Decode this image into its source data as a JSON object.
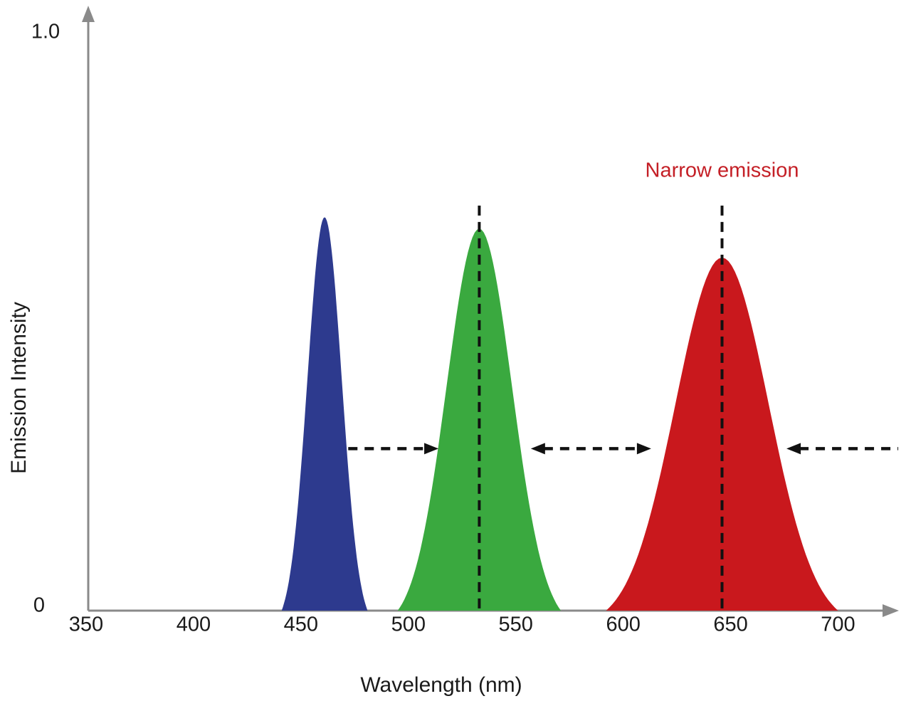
{
  "figure": {
    "background": "#ffffff",
    "axis_color": "#8a8a8a",
    "dash_color": "#111111",
    "text_color": "#1a1a1a"
  },
  "chart_data": {
    "type": "area",
    "title": "",
    "xlabel": "Wavelength (nm)",
    "ylabel": "Emission Intensity",
    "xlim": [
      350,
      727
    ],
    "ylim": [
      0,
      1.0
    ],
    "grid": false,
    "legend": "none",
    "x_ticks": [
      350,
      400,
      450,
      500,
      550,
      600,
      650,
      700
    ],
    "y_ticks": [
      {
        "value": 1.0,
        "label": "1.0"
      },
      {
        "value": 0,
        "label": "0"
      }
    ],
    "annotation": {
      "text": "Narrow emission",
      "color": "#c41f26",
      "x_nm": 646,
      "y_intensity": 0.76
    },
    "series": [
      {
        "name": "blue",
        "color": "#2d3a8e",
        "peak_nm": 461,
        "peak_intensity": 0.68,
        "base_halfwidth_nm": 20,
        "dashed_center_line": false
      },
      {
        "name": "green",
        "color": "#3aa93f",
        "peak_nm": 533,
        "peak_intensity": 0.66,
        "base_halfwidth_nm": 38,
        "dashed_center_line": true
      },
      {
        "name": "red",
        "color": "#c9181d",
        "peak_nm": 646,
        "peak_intensity": 0.61,
        "base_halfwidth_nm": 54,
        "dashed_center_line": true
      }
    ],
    "dashed_center_line_top_intensity": 0.7,
    "spacing_arrows": {
      "y_intensity": 0.28,
      "segments": [
        {
          "from_nm": 472,
          "to_nm": 514,
          "heads": "right"
        },
        {
          "from_nm": 557,
          "to_nm": 613,
          "heads": "both"
        },
        {
          "from_nm": 676,
          "to_nm": 728,
          "heads": "left"
        }
      ]
    }
  }
}
